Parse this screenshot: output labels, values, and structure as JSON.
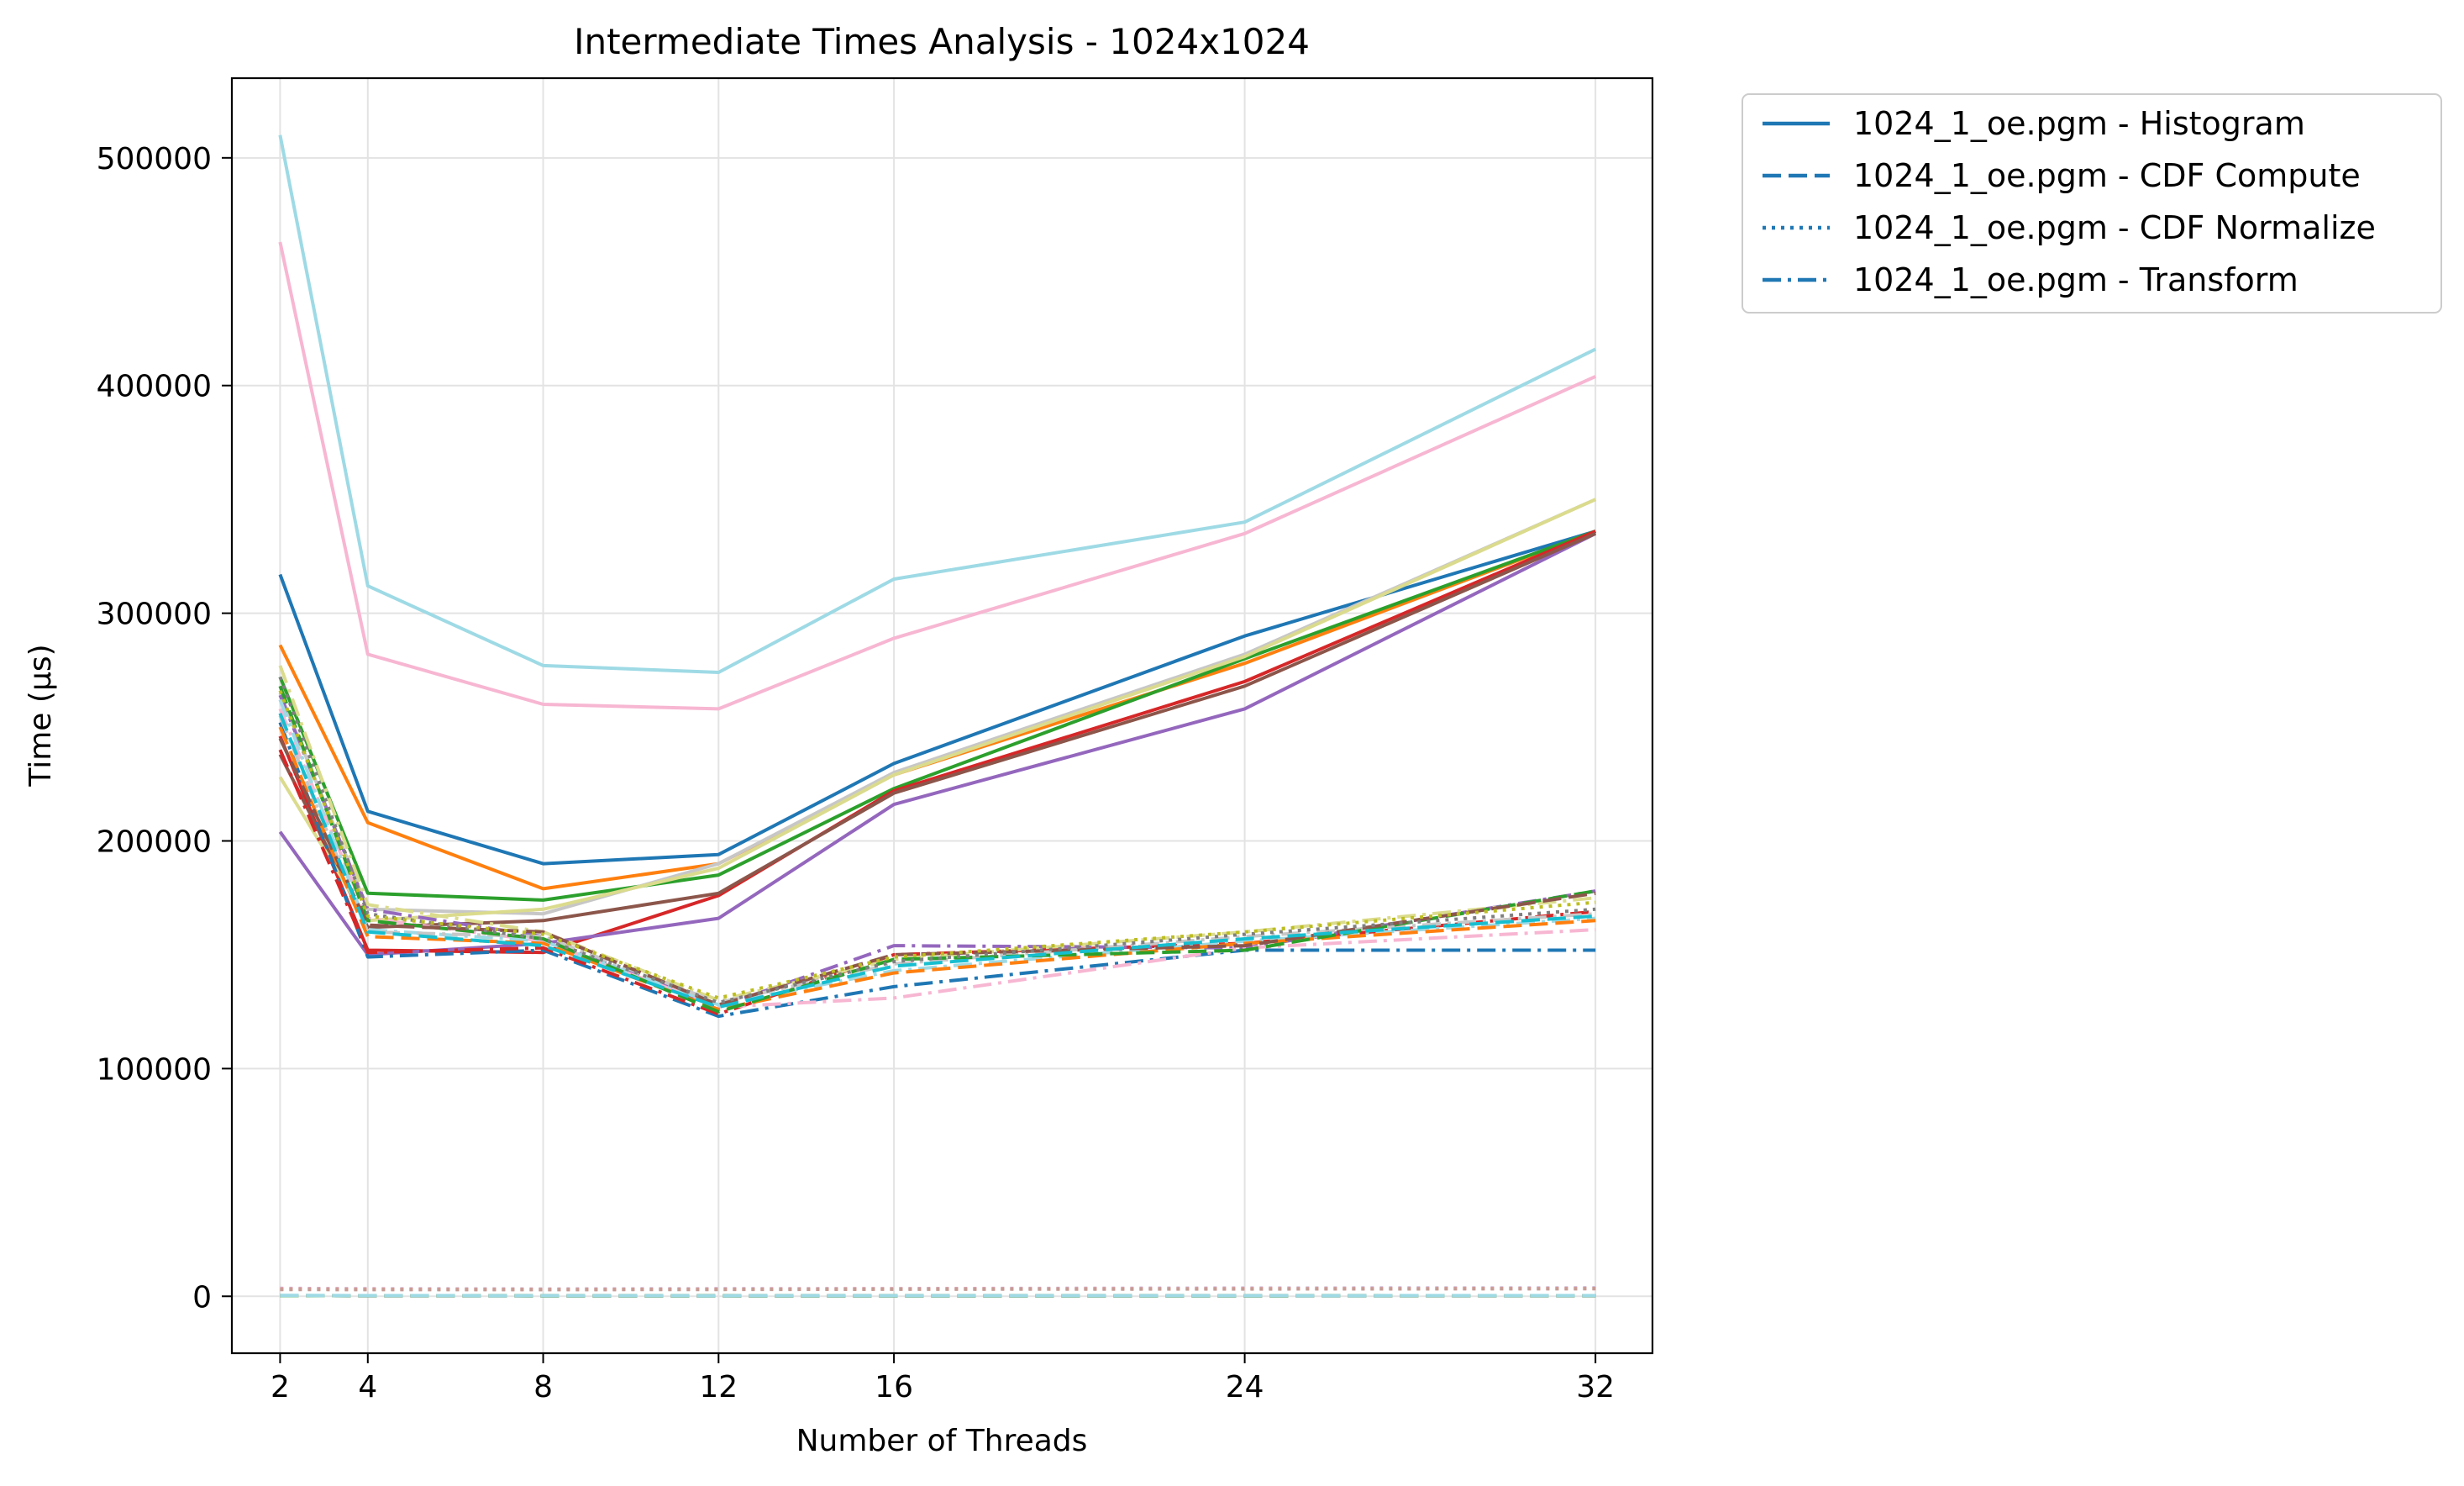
{
  "chart_data": {
    "type": "line",
    "title": "Intermediate Times Analysis - 1024x1024",
    "xlabel": "Number of Threads",
    "ylabel": "Time (µs)",
    "x": [
      2,
      4,
      8,
      12,
      16,
      24,
      32
    ],
    "xticks": [
      "2",
      "4",
      "8",
      "12",
      "16",
      "24",
      "32"
    ],
    "yticks": [
      "0",
      "100000",
      "200000",
      "300000",
      "400000",
      "500000"
    ],
    "xlim": [
      0.9,
      33.3
    ],
    "ylim": [
      -25000,
      535000
    ],
    "grid": true,
    "legend_position": "outside-top-right",
    "legend": [
      {
        "label": "1024_1_oe.pgm - Histogram",
        "style": "solid"
      },
      {
        "label": "1024_1_oe.pgm - CDF Compute",
        "style": "dashed"
      },
      {
        "label": "1024_1_oe.pgm - CDF Normalize",
        "style": "dotted"
      },
      {
        "label": "1024_1_oe.pgm - Transform",
        "style": "dashdot"
      }
    ],
    "legend_color": "#1f77b4",
    "series": [
      {
        "style": "solid",
        "color": "#1f77b4",
        "values": [
          317000,
          213000,
          190000,
          194000,
          234000,
          290000,
          336000
        ]
      },
      {
        "style": "solid",
        "color": "#ff7f0e",
        "values": [
          286000,
          208000,
          179000,
          190000,
          229000,
          278000,
          336000
        ]
      },
      {
        "style": "solid",
        "color": "#2ca02c",
        "values": [
          272000,
          177000,
          174000,
          185000,
          223000,
          280000,
          336000
        ]
      },
      {
        "style": "solid",
        "color": "#d62728",
        "values": [
          246000,
          152000,
          151000,
          176000,
          222000,
          270000,
          336000
        ]
      },
      {
        "style": "solid",
        "color": "#9467bd",
        "values": [
          204000,
          150000,
          155000,
          166000,
          216000,
          258000,
          335000
        ]
      },
      {
        "style": "solid",
        "color": "#8c564b",
        "values": [
          238000,
          162000,
          165000,
          177000,
          221000,
          268000,
          335000
        ]
      },
      {
        "style": "solid",
        "color": "#f7b6d2",
        "values": [
          463000,
          282000,
          260000,
          258000,
          289000,
          335000,
          404000
        ]
      },
      {
        "style": "solid",
        "color": "#c7c7c7",
        "values": [
          265000,
          170000,
          168000,
          190000,
          230000,
          282000,
          350000
        ]
      },
      {
        "style": "solid",
        "color": "#dbdb8d",
        "values": [
          228000,
          165000,
          170000,
          188000,
          229000,
          281000,
          350000
        ]
      },
      {
        "style": "solid",
        "color": "#9edae5",
        "values": [
          510000,
          312000,
          277000,
          274000,
          315000,
          340000,
          416000
        ]
      },
      {
        "style": "dashed",
        "color": "#1f77b4",
        "values": [
          300,
          250,
          220,
          200,
          210,
          230,
          240
        ]
      },
      {
        "style": "dashed",
        "color": "#ff7f0e",
        "values": [
          300,
          250,
          220,
          200,
          210,
          230,
          240
        ]
      },
      {
        "style": "dashed",
        "color": "#2ca02c",
        "values": [
          300,
          250,
          220,
          200,
          210,
          230,
          240
        ]
      },
      {
        "style": "dashed",
        "color": "#9edae5",
        "values": [
          400,
          300,
          250,
          230,
          240,
          260,
          270
        ]
      },
      {
        "style": "dotted",
        "color": "#c5b0d5",
        "values": [
          3500,
          3300,
          3200,
          3300,
          3400,
          3600,
          3700
        ]
      },
      {
        "style": "dotted",
        "color": "#ff9896",
        "values": [
          3200,
          3100,
          3000,
          3100,
          3200,
          3300,
          3400
        ]
      },
      {
        "style": "dotted",
        "color": "#c49c94",
        "values": [
          3000,
          2900,
          2900,
          3000,
          3100,
          3200,
          3300
        ]
      },
      {
        "style": "dashdot",
        "color": "#1f77b4",
        "values": [
          252000,
          149000,
          152000,
          123000,
          136000,
          152000,
          152000
        ]
      },
      {
        "style": "dashdot",
        "color": "#d62728",
        "values": [
          240000,
          151000,
          153000,
          124000,
          150000,
          155000,
          169000
        ]
      },
      {
        "style": "dashdot",
        "color": "#9467bd",
        "values": [
          264000,
          170000,
          158000,
          127000,
          154000,
          153000,
          178000
        ]
      },
      {
        "style": "dashdot",
        "color": "#f7b6d2",
        "values": [
          258000,
          166000,
          156000,
          127000,
          131000,
          153000,
          161000
        ]
      },
      {
        "style": "dashdot",
        "color": "#dbdb8d",
        "values": [
          277000,
          172000,
          160000,
          130000,
          148000,
          160000,
          175000
        ]
      },
      {
        "style": "dashdot",
        "color": "#9edae5",
        "values": [
          262000,
          161000,
          156000,
          128000,
          143000,
          156000,
          166000
        ]
      },
      {
        "style": "dashdot",
        "color": "#c7c7c7",
        "values": [
          255000,
          160000,
          158000,
          129000,
          146000,
          158000,
          168000
        ]
      },
      {
        "style": "dashed",
        "color": "#ff7f0e",
        "values": [
          250000,
          158000,
          155000,
          126000,
          142000,
          155000,
          165000
        ]
      },
      {
        "style": "dashed",
        "color": "#2ca02c",
        "values": [
          268000,
          165000,
          157000,
          125000,
          148000,
          152000,
          178000
        ]
      },
      {
        "style": "dashed",
        "color": "#8c564b",
        "values": [
          245000,
          163000,
          160000,
          128000,
          150000,
          154000,
          177000
        ]
      },
      {
        "style": "dashed",
        "color": "#17becf",
        "values": [
          256000,
          160000,
          154000,
          127000,
          145000,
          157000,
          167000
        ]
      },
      {
        "style": "dotted",
        "color": "#7f7f7f",
        "values": [
          272000,
          168000,
          157000,
          129000,
          147000,
          159000,
          170000
        ]
      },
      {
        "style": "dotted",
        "color": "#bcbd22",
        "values": [
          266000,
          167000,
          159000,
          131000,
          149000,
          160000,
          173000
        ]
      }
    ]
  }
}
